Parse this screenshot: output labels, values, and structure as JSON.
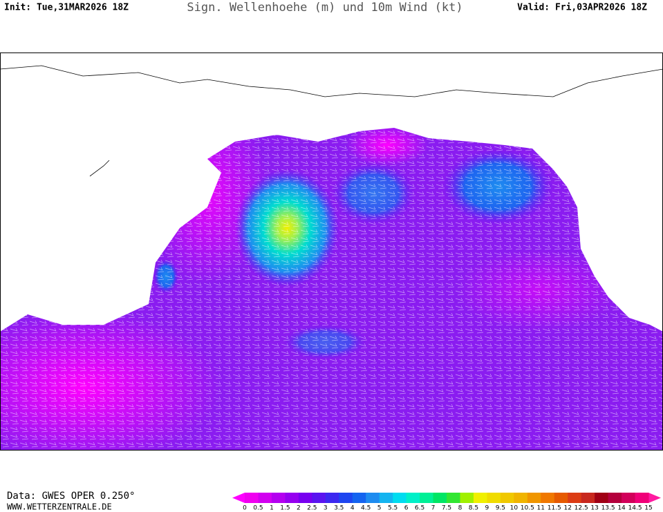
{
  "header": {
    "init": "Init: Tue,31MAR2026 18Z",
    "title": "Sign. Wellenhoehe (m) und 10m Wind (kt)",
    "valid": "Valid: Fri,03APR2026 18Z"
  },
  "footer": {
    "source": "Data: GWES OPER 0.250°",
    "website": "WWW.WETTERZENTRALE.DE"
  },
  "colorbar": {
    "ticks": [
      0,
      0.5,
      1,
      1.5,
      2,
      2.5,
      3,
      3.5,
      4,
      4.5,
      5,
      5.5,
      6,
      6.5,
      7,
      7.5,
      8,
      8.5,
      9,
      9.5,
      10,
      10.5,
      11,
      11.5,
      12,
      12.5,
      13,
      13.5,
      14,
      14.5,
      15
    ],
    "colors": [
      "#f000f0",
      "#d200f0",
      "#b400f0",
      "#9600f0",
      "#7800f0",
      "#5a14f0",
      "#3c28f0",
      "#1e46f0",
      "#1464f0",
      "#1e8cf0",
      "#14b4f0",
      "#00dcf0",
      "#00f0c8",
      "#00f096",
      "#00e664",
      "#32e632",
      "#a0f000",
      "#f0f000",
      "#f0dc00",
      "#f0c800",
      "#f0b400",
      "#f09600",
      "#f07800",
      "#e65a00",
      "#dc3c14",
      "#c8281e",
      "#a00014",
      "#b4003c",
      "#d2005a",
      "#f00078"
    ],
    "under_color": "#ff00ff",
    "over_color": "#ff1aa0"
  }
}
